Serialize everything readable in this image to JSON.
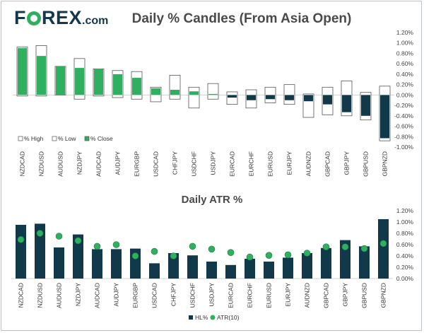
{
  "logo": {
    "brand_prefix": "F",
    "brand_suffix": "REX",
    "tld": ".com"
  },
  "chart_data": [
    {
      "type": "candlestick",
      "title": "Daily % Candles (From Asia Open)",
      "categories": [
        "NZDCAD",
        "NZDUSD",
        "AUDUSD",
        "NZDJPY",
        "AUDCAD",
        "AUDJPY",
        "EURGBP",
        "USDCAD",
        "CHFJPY",
        "USDCHF",
        "USDJPY",
        "EURCAD",
        "EURCHF",
        "EURUSD",
        "EURJPY",
        "AUDNZD",
        "GBPCAD",
        "GBPJPY",
        "GBPUSD",
        "GBPNZD"
      ],
      "series": [
        {
          "name": "% High",
          "values": [
            0.92,
            0.95,
            0.55,
            0.7,
            0.5,
            0.47,
            0.45,
            0.15,
            0.38,
            0.15,
            0.22,
            0.06,
            0.1,
            0.15,
            0.2,
            0.02,
            0.15,
            0.27,
            0.05,
            0.17
          ]
        },
        {
          "name": "% Low",
          "values": [
            -0.02,
            -0.02,
            0.0,
            -0.08,
            -0.02,
            -0.05,
            -0.08,
            -0.13,
            -0.08,
            -0.25,
            -0.08,
            -0.18,
            -0.25,
            -0.15,
            -0.18,
            -0.43,
            -0.38,
            -0.4,
            -0.48,
            -0.88
          ]
        },
        {
          "name": "% Close",
          "values": [
            0.9,
            0.75,
            0.55,
            0.52,
            0.5,
            0.4,
            0.33,
            0.13,
            0.1,
            0.07,
            0.02,
            -0.05,
            -0.1,
            -0.08,
            -0.1,
            -0.12,
            -0.18,
            -0.33,
            -0.4,
            -0.83
          ]
        }
      ],
      "yticks": [
        "1.20%",
        "1.00%",
        "0.80%",
        "0.60%",
        "0.40%",
        "0.20%",
        "0.00%",
        "-0.20%",
        "-0.40%",
        "-0.60%",
        "-0.80%",
        "-1.00%"
      ],
      "ylim": [
        -1.0,
        1.2
      ],
      "colors": {
        "up": "#2fb060",
        "down": "#12394a",
        "range_fill": "#ffffff",
        "range_stroke": "#555555",
        "axis": "#d0d0d0"
      }
    },
    {
      "type": "bar",
      "title": "Daily ATR %",
      "categories": [
        "NZDCAD",
        "NZDUSD",
        "AUDUSD",
        "NZDJPY",
        "AUDCAD",
        "AUDJPY",
        "EURGBP",
        "USDCAD",
        "CHFJPY",
        "USDCHF",
        "USDJPY",
        "EURCAD",
        "EURCHF",
        "EURUSD",
        "EURJPY",
        "AUDNZD",
        "GBPCAD",
        "GBPJPY",
        "GBPUSD",
        "GBPNZD"
      ],
      "series": [
        {
          "name": "HL%",
          "values": [
            0.95,
            0.97,
            0.55,
            0.78,
            0.52,
            0.52,
            0.53,
            0.27,
            0.45,
            0.41,
            0.3,
            0.24,
            0.35,
            0.3,
            0.37,
            0.45,
            0.54,
            0.68,
            0.57,
            1.05
          ]
        },
        {
          "name": "ATR(10)",
          "values": [
            0.69,
            0.8,
            0.75,
            0.67,
            0.57,
            0.6,
            0.4,
            0.48,
            0.4,
            0.57,
            0.52,
            0.46,
            0.38,
            0.41,
            0.42,
            0.45,
            0.56,
            0.56,
            0.53,
            0.62
          ]
        }
      ],
      "yticks": [
        "1.20%",
        "1.00%",
        "0.80%",
        "0.60%",
        "0.40%",
        "0.20%",
        "0.00%"
      ],
      "ylim": [
        0,
        1.2
      ],
      "colors": {
        "bar": "#12394a",
        "marker": "#2fb060",
        "axis": "#d0d0d0"
      }
    }
  ]
}
